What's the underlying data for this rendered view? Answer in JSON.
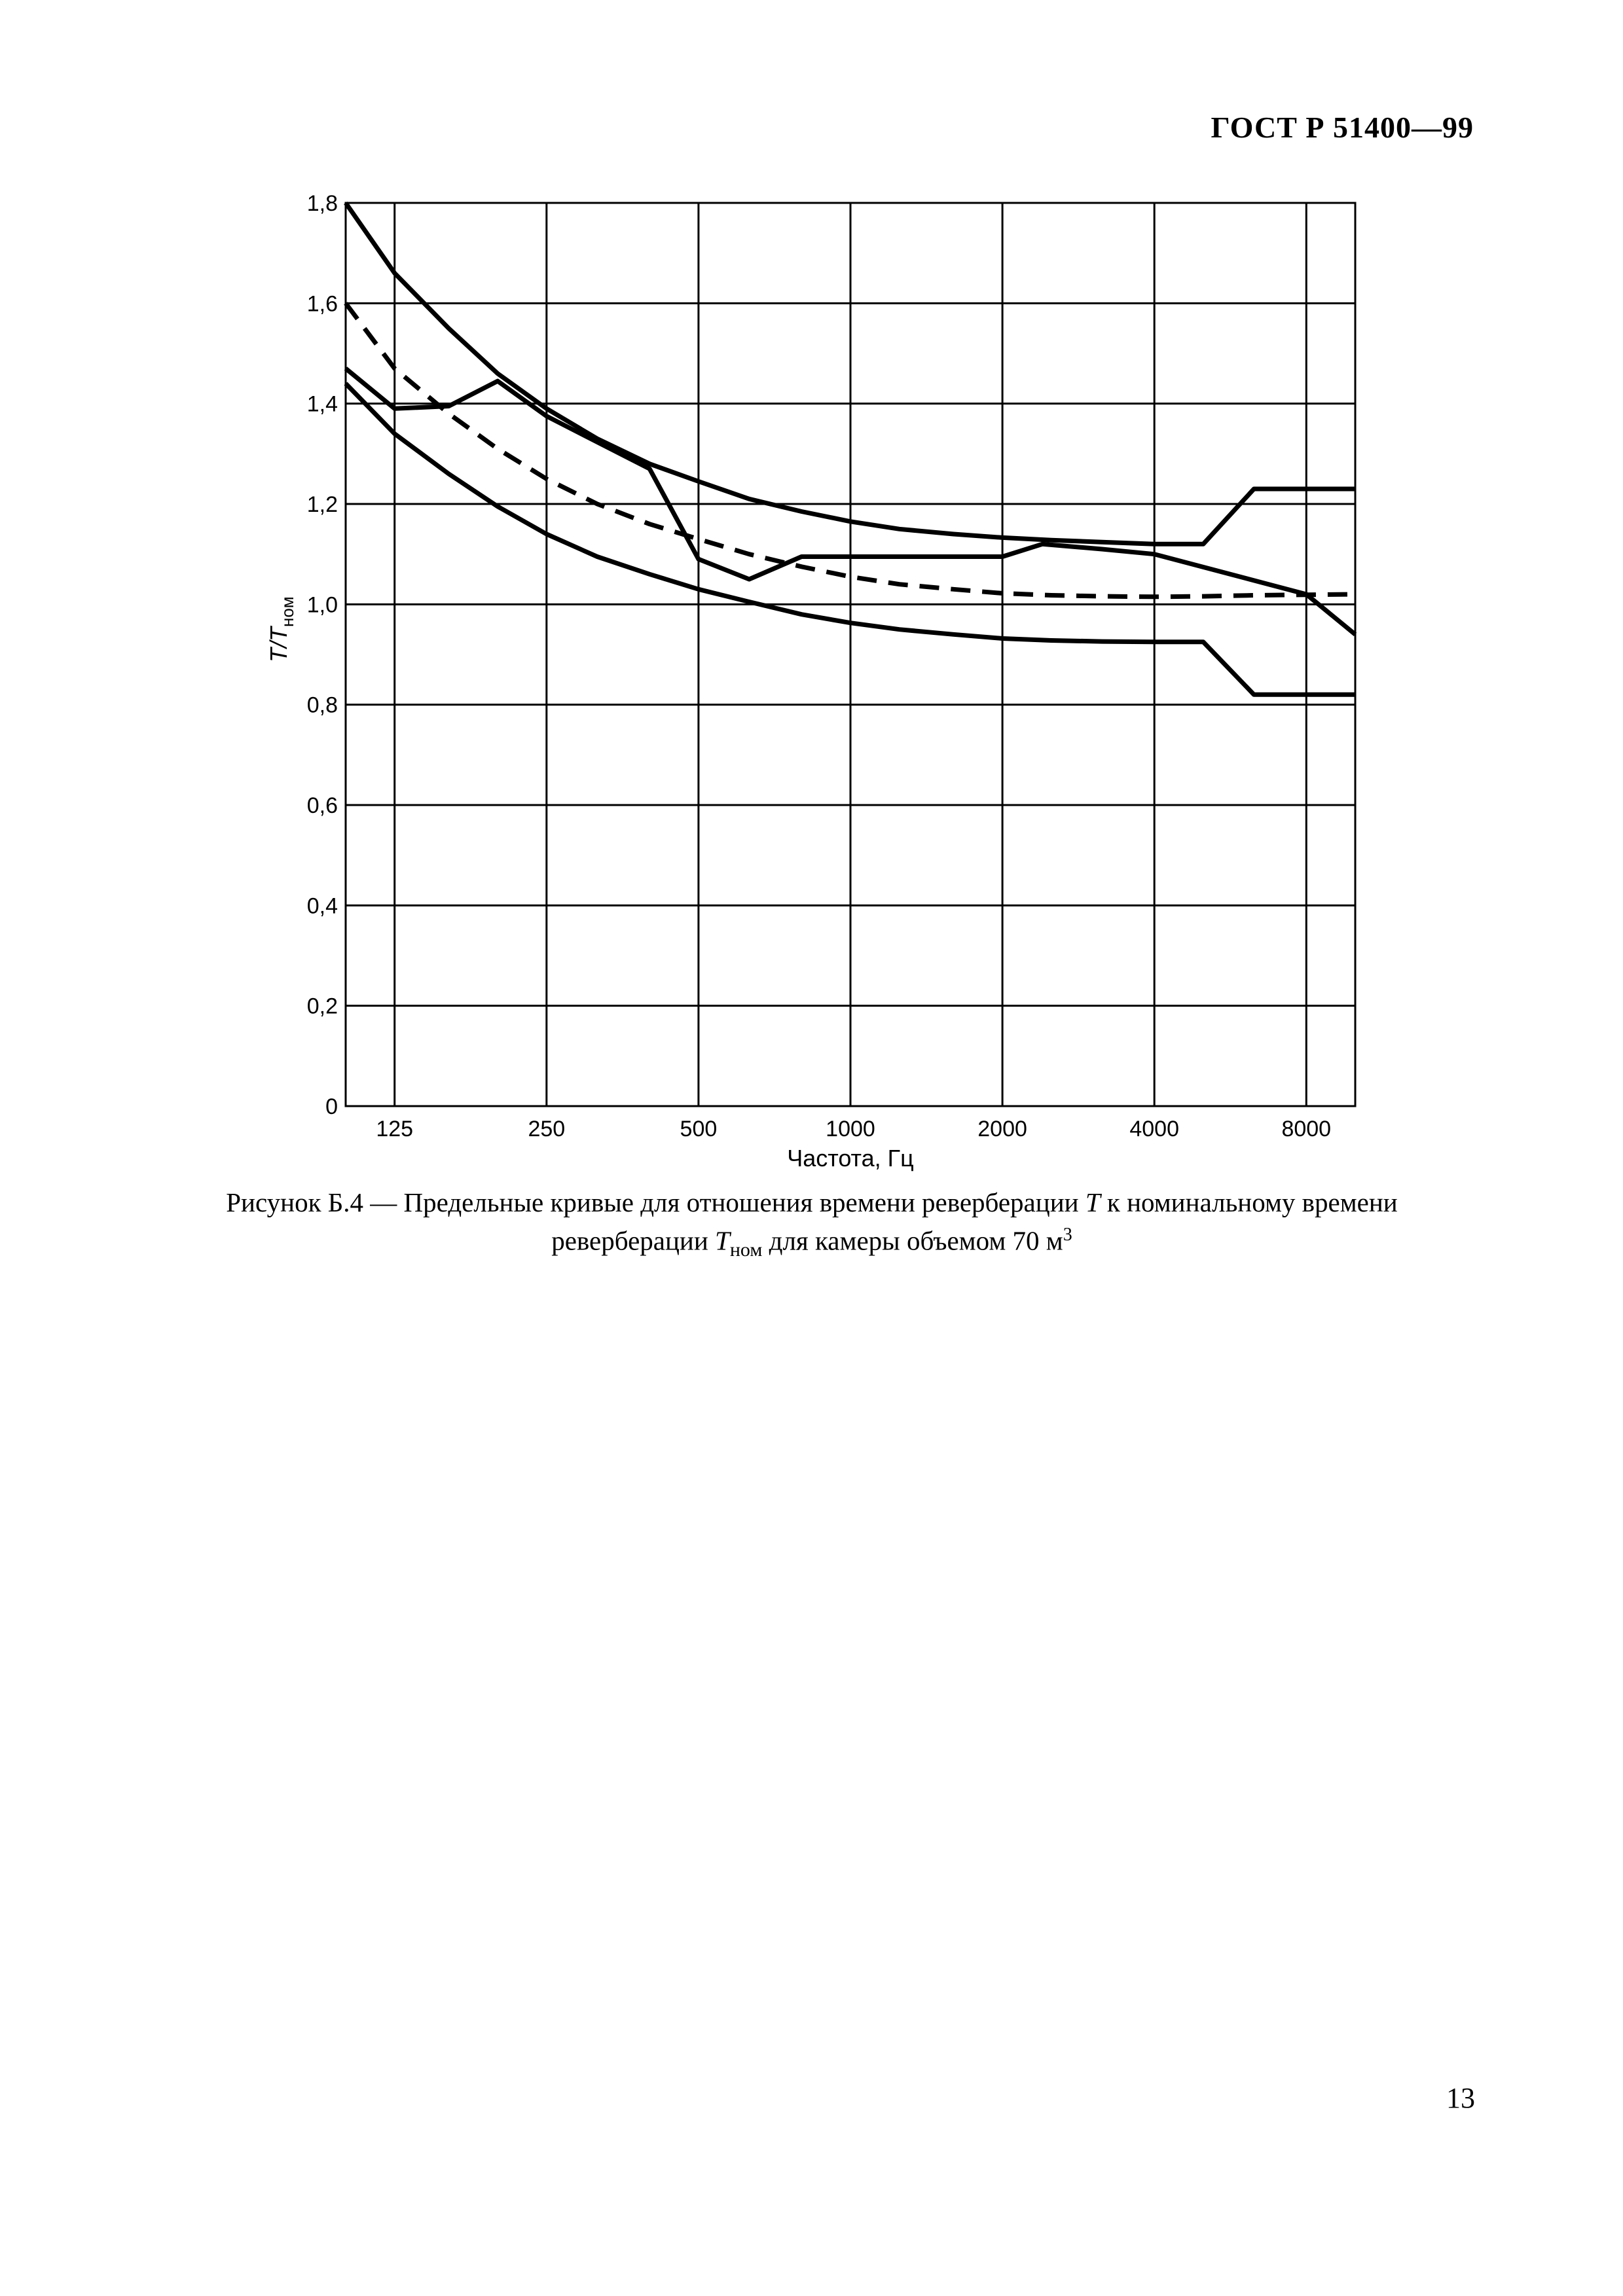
{
  "header": {
    "standard": "ГОСТ Р 51400—99"
  },
  "caption": {
    "line1_before": "Рисунок Б.4 — Предельные кривые для отношения времени реверберации ",
    "var_T": "T",
    "line1_after": " к номинальному времени",
    "line2_before": "реверберации ",
    "var_Tnom_base": "T",
    "var_Tnom_sub": "ном",
    "line2_after": " для камеры объемом 70 м",
    "superscript": "3"
  },
  "page_number": "13",
  "chart_data": {
    "type": "line",
    "xlabel": "Частота, Гц",
    "ylabel": {
      "base": "T/T",
      "sub": "ном"
    },
    "x_scale": "log2",
    "xlim": [
      100,
      10000
    ],
    "ylim": [
      0,
      1.8
    ],
    "x_ticks": [
      {
        "value": 125,
        "label": "125"
      },
      {
        "value": 250,
        "label": "250"
      },
      {
        "value": 500,
        "label": "500"
      },
      {
        "value": 1000,
        "label": "1000"
      },
      {
        "value": 2000,
        "label": "2000"
      },
      {
        "value": 4000,
        "label": "4000"
      },
      {
        "value": 8000,
        "label": "8000"
      }
    ],
    "y_ticks": [
      {
        "value": 0,
        "label": "0"
      },
      {
        "value": 0.2,
        "label": "0,2"
      },
      {
        "value": 0.4,
        "label": "0,4"
      },
      {
        "value": 0.6,
        "label": "0,6"
      },
      {
        "value": 0.8,
        "label": "0,8"
      },
      {
        "value": 1.0,
        "label": "1,0"
      },
      {
        "value": 1.2,
        "label": "1,2"
      },
      {
        "value": 1.4,
        "label": "1,4"
      },
      {
        "value": 1.6,
        "label": "1,6"
      },
      {
        "value": 1.8,
        "label": "1,8"
      }
    ],
    "grid": true,
    "series": [
      {
        "style": "solid",
        "points": [
          [
            100,
            1.8
          ],
          [
            125,
            1.66
          ],
          [
            160,
            1.55
          ],
          [
            200,
            1.46
          ],
          [
            250,
            1.39
          ],
          [
            315,
            1.33
          ],
          [
            400,
            1.28
          ],
          [
            500,
            1.245
          ],
          [
            630,
            1.21
          ],
          [
            800,
            1.185
          ],
          [
            1000,
            1.165
          ],
          [
            1250,
            1.15
          ],
          [
            1600,
            1.14
          ],
          [
            2000,
            1.133
          ],
          [
            2500,
            1.128
          ],
          [
            3150,
            1.124
          ],
          [
            4000,
            1.12
          ],
          [
            5000,
            1.12
          ],
          [
            6300,
            1.23
          ],
          [
            10000,
            1.23
          ]
        ]
      },
      {
        "style": "solid",
        "points": [
          [
            100,
            1.44
          ],
          [
            125,
            1.34
          ],
          [
            160,
            1.26
          ],
          [
            200,
            1.195
          ],
          [
            250,
            1.14
          ],
          [
            315,
            1.095
          ],
          [
            400,
            1.06
          ],
          [
            500,
            1.03
          ],
          [
            630,
            1.005
          ],
          [
            800,
            0.98
          ],
          [
            1000,
            0.963
          ],
          [
            1250,
            0.95
          ],
          [
            1600,
            0.94
          ],
          [
            2000,
            0.932
          ],
          [
            2500,
            0.928
          ],
          [
            3150,
            0.926
          ],
          [
            4000,
            0.925
          ],
          [
            5000,
            0.925
          ],
          [
            6300,
            0.82
          ],
          [
            10000,
            0.82
          ]
        ]
      },
      {
        "style": "dashed",
        "points": [
          [
            100,
            1.6
          ],
          [
            125,
            1.47
          ],
          [
            160,
            1.38
          ],
          [
            200,
            1.31
          ],
          [
            250,
            1.25
          ],
          [
            315,
            1.2
          ],
          [
            400,
            1.16
          ],
          [
            500,
            1.13
          ],
          [
            630,
            1.1
          ],
          [
            800,
            1.075
          ],
          [
            1000,
            1.055
          ],
          [
            1250,
            1.04
          ],
          [
            1600,
            1.03
          ],
          [
            2000,
            1.022
          ],
          [
            2500,
            1.018
          ],
          [
            3150,
            1.016
          ],
          [
            4000,
            1.015
          ],
          [
            5000,
            1.016
          ],
          [
            6300,
            1.018
          ],
          [
            10000,
            1.02
          ]
        ]
      },
      {
        "style": "solid",
        "points": [
          [
            100,
            1.47
          ],
          [
            125,
            1.39
          ],
          [
            160,
            1.395
          ],
          [
            200,
            1.445
          ],
          [
            250,
            1.375
          ],
          [
            400,
            1.27
          ],
          [
            500,
            1.09
          ],
          [
            630,
            1.05
          ],
          [
            800,
            1.095
          ],
          [
            1600,
            1.095
          ],
          [
            2000,
            1.095
          ],
          [
            2400,
            1.12
          ],
          [
            3150,
            1.11
          ],
          [
            4000,
            1.1
          ],
          [
            8000,
            1.02
          ],
          [
            10000,
            0.94
          ]
        ]
      }
    ]
  }
}
